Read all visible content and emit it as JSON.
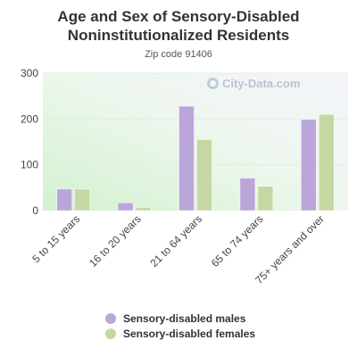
{
  "chart_data": {
    "type": "bar",
    "title": "Age and Sex of Sensory-Disabled Noninstitutionalized Residents",
    "subtitle": "Zip code 91406",
    "categories": [
      "5 to 15 years",
      "16 to 20 years",
      "21 to 64 years",
      "65 to 74 years",
      "75+ years and over"
    ],
    "series": [
      {
        "name": "Sensory-disabled males",
        "values": [
          47,
          17,
          228,
          71,
          199
        ],
        "color": "#bba6d9"
      },
      {
        "name": "Sensory-disabled females",
        "values": [
          47,
          7,
          155,
          53,
          210
        ],
        "color": "#c5d8a4"
      }
    ],
    "yticks": [
      0,
      100,
      200,
      300
    ],
    "ylim": [
      0,
      300
    ],
    "grid": true,
    "legend": "bottom"
  },
  "watermark": {
    "text": "City-Data.com",
    "icon": "magnifier-icon"
  }
}
